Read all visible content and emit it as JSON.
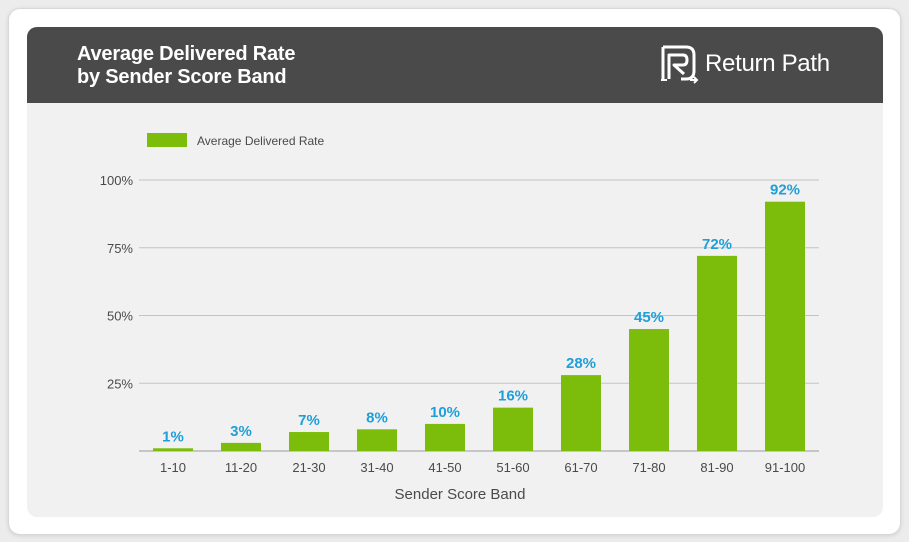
{
  "header": {
    "title_line1": "Average Delivered Rate",
    "title_line2": "by Sender Score Band",
    "brand_name": "Return Path",
    "brand_icon": "return-path-logo-icon"
  },
  "colors": {
    "bar": "#7bbd0a",
    "data_label": "#1e9fd9",
    "header_bg": "#4a4a4b",
    "panel_bg": "#f1f1f1"
  },
  "chart_data": {
    "type": "bar",
    "categories": [
      "1-10",
      "11-20",
      "21-30",
      "31-40",
      "41-50",
      "51-60",
      "61-70",
      "71-80",
      "81-90",
      "91-100"
    ],
    "series": [
      {
        "name": "Average Delivered Rate",
        "values": [
          1,
          3,
          7,
          8,
          10,
          16,
          28,
          45,
          72,
          92
        ],
        "labels": [
          "1%",
          "3%",
          "7%",
          "8%",
          "10%",
          "16%",
          "28%",
          "45%",
          "72%",
          "92%"
        ]
      }
    ],
    "xlabel": "Sender Score Band",
    "ylabel": "",
    "ylim": [
      0,
      100
    ],
    "yticks": [
      25,
      50,
      75,
      100
    ],
    "ytick_labels": [
      "25%",
      "50%",
      "75%",
      "100%"
    ],
    "grid": true,
    "legend": "top-left"
  }
}
